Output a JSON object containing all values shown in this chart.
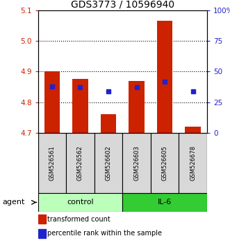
{
  "title": "GDS3773 / 10596940",
  "samples": [
    "GSM526561",
    "GSM526562",
    "GSM526602",
    "GSM526603",
    "GSM526605",
    "GSM526678"
  ],
  "red_values": [
    4.9,
    4.875,
    4.76,
    4.87,
    5.065,
    4.72
  ],
  "blue_values": [
    4.852,
    4.848,
    4.835,
    4.848,
    4.868,
    4.835
  ],
  "y_min": 4.7,
  "y_max": 5.1,
  "y_ticks_left": [
    4.7,
    4.8,
    4.9,
    5.0,
    5.1
  ],
  "right_labels": [
    "0",
    "25",
    "50",
    "75",
    "100%"
  ],
  "right_tick_vals": [
    4.7,
    4.8,
    4.9,
    5.0,
    5.1
  ],
  "groups": [
    {
      "label": "control",
      "indices": [
        0,
        1,
        2
      ],
      "color": "#bbffbb"
    },
    {
      "label": "IL-6",
      "indices": [
        3,
        4,
        5
      ],
      "color": "#33cc33"
    }
  ],
  "bar_color": "#cc2200",
  "blue_color": "#2222cc",
  "bar_width": 0.55,
  "bar_bottom": 4.7,
  "blue_marker_size": 4,
  "grid_color": "#000000",
  "grid_linestyle": ":",
  "grid_linewidth": 0.8,
  "left_label_color": "#cc2200",
  "right_label_color": "#2222cc",
  "legend_red_label": "transformed count",
  "legend_blue_label": "percentile rank within the sample",
  "agent_label": "agent",
  "title_fontsize": 10,
  "tick_fontsize": 7.5,
  "sample_fontsize": 6,
  "group_fontsize": 8,
  "legend_fontsize": 7
}
